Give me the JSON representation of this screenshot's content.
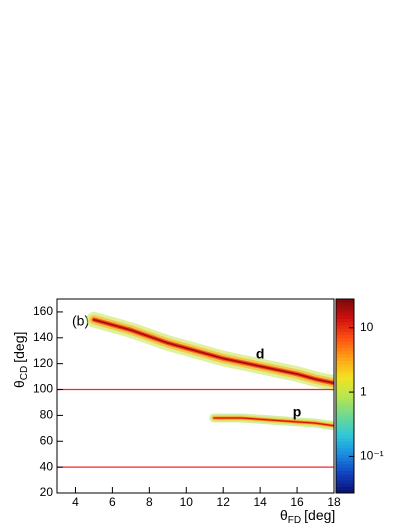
{
  "chart_data": {
    "type": "density",
    "xlabel_symbol": "θ",
    "xlabel_sub": "FD",
    "xlabel_unit": "[deg]",
    "ylabel_symbol": "θ",
    "ylabel_sub": "CD",
    "ylabel_unit": "[deg]",
    "annotation": "(b)",
    "xlim": [
      3,
      18
    ],
    "xticks": [
      4,
      6,
      8,
      10,
      12,
      14,
      16,
      18
    ],
    "ylim": [
      20,
      170
    ],
    "yticks": [
      20,
      40,
      60,
      80,
      100,
      120,
      140,
      160
    ],
    "series": [
      {
        "name": "d",
        "peak": 20,
        "width": 12,
        "x": [
          5,
          6,
          7,
          8,
          9,
          10,
          11,
          12,
          13,
          14,
          15,
          16,
          17,
          18
        ],
        "y": [
          154,
          150,
          146,
          141,
          136,
          132,
          128,
          124,
          121,
          118,
          115,
          112,
          108,
          105
        ]
      },
      {
        "name": "p",
        "peak": 15,
        "width": 7,
        "x": [
          11.5,
          12,
          13,
          14,
          15,
          16,
          17,
          18
        ],
        "y": [
          78,
          78,
          78,
          77,
          76,
          75,
          74,
          72
        ]
      }
    ],
    "hlines": [
      100,
      40
    ],
    "hline_color": "#ff2020",
    "zlim": [
      0.027,
      28
    ],
    "zlog": true,
    "zticks": [
      {
        "value": 0.1,
        "label": "10⁻¹"
      },
      1,
      10
    ],
    "colormap": [
      "#0a0f6e",
      "#1040c0",
      "#1a8ce0",
      "#30c8d8",
      "#70d890",
      "#b8e650",
      "#f4e020",
      "#ffa018",
      "#ff5010",
      "#d01010",
      "#7a0a0a"
    ]
  }
}
